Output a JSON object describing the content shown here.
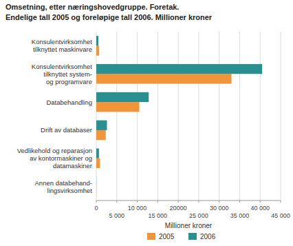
{
  "chart_data": {
    "type": "bar",
    "orientation": "horizontal",
    "title": "Omsetning, etter næringshovedgruppe. Foretak.",
    "subtitle": "Endelige tall 2005 og foreløpige tall 2006. Millioner kroner",
    "x_label": "Millioner kroner",
    "categories": [
      "Konsulentvirksomhet\ntilknyttet maskinvare",
      "Konsulentvirksomhet\ntilknyttet system-\nog programvare",
      "Databehandling",
      "Drift av databaser",
      "Vedlikehold og reparasjon\nav kontormaskiner og\ndatamaskiner",
      "Annen databehand-\nlingsvirksomhet"
    ],
    "series": [
      {
        "name": "2005",
        "color": "#f0953a",
        "values": [
          700,
          33000,
          10500,
          2300,
          900,
          30
        ]
      },
      {
        "name": "2006",
        "color": "#2a8f8f",
        "values": [
          500,
          40500,
          12800,
          2600,
          650,
          30
        ]
      }
    ],
    "xlim": [
      0,
      45000
    ],
    "xticks": [
      0,
      {
        "value": 5000,
        "label": "5 000"
      },
      {
        "value": 10000,
        "label": "10 000"
      },
      {
        "value": 15000,
        "label": "15 000"
      },
      20000,
      {
        "value": 25000,
        "label": "25 000"
      },
      {
        "value": 30000,
        "label": "30 000"
      },
      {
        "value": 35000,
        "label": "35 000"
      },
      {
        "value": 40000,
        "label": "40 000"
      },
      {
        "value": 45000,
        "label": "45 000"
      }
    ],
    "grid": true,
    "legend": "bottom"
  }
}
